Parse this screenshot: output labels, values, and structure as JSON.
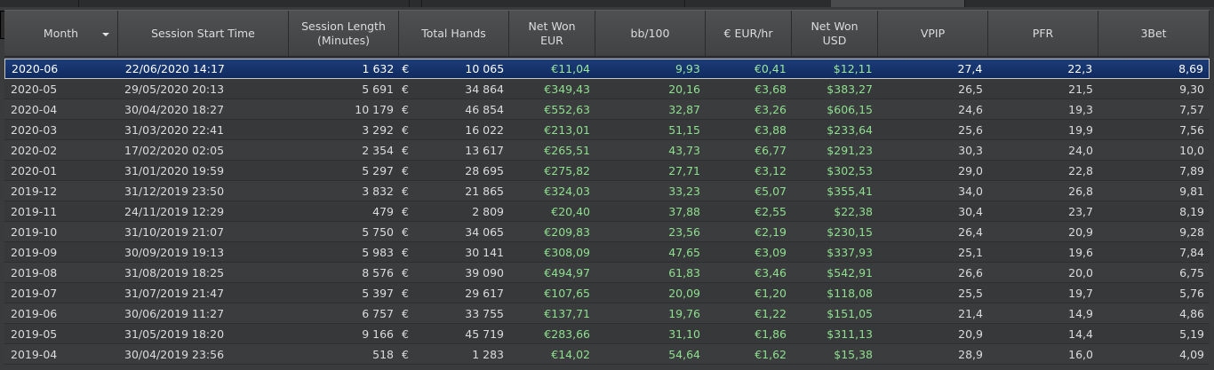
{
  "columns": [
    {
      "key": "month",
      "label": "Month",
      "sortable": true
    },
    {
      "key": "start",
      "label": "Session Start Time"
    },
    {
      "key": "length",
      "label": "Session Length (Minutes)"
    },
    {
      "key": "hands",
      "label": "Total Hands"
    },
    {
      "key": "net_eur",
      "label": "Net Won EUR"
    },
    {
      "key": "bb100",
      "label": "bb/100"
    },
    {
      "key": "eurhr",
      "label": "€ EUR/hr"
    },
    {
      "key": "net_usd",
      "label": "Net Won USD"
    },
    {
      "key": "vpip",
      "label": "VPIP"
    },
    {
      "key": "pfr",
      "label": "PFR"
    },
    {
      "key": "threebet",
      "label": "3Bet"
    }
  ],
  "currency_symbol": "€",
  "selected_row": 0,
  "colors": {
    "positive": "#8ee08e",
    "selection": "#1d3d7a",
    "text": "#dcdcdc"
  },
  "rows": [
    {
      "month": "2020-06",
      "start": "22/06/2020 14:17",
      "length": "1 632",
      "hands": "10 065",
      "net_eur": "€11,04",
      "bb100": "9,93",
      "eurhr": "€0,41",
      "net_usd": "$12,11",
      "vpip": "27,4",
      "pfr": "22,3",
      "threebet": "8,69"
    },
    {
      "month": "2020-05",
      "start": "29/05/2020 20:13",
      "length": "5 691",
      "hands": "34 864",
      "net_eur": "€349,43",
      "bb100": "20,16",
      "eurhr": "€3,68",
      "net_usd": "$383,27",
      "vpip": "26,5",
      "pfr": "21,5",
      "threebet": "9,30"
    },
    {
      "month": "2020-04",
      "start": "30/04/2020 18:27",
      "length": "10 179",
      "hands": "46 854",
      "net_eur": "€552,63",
      "bb100": "32,87",
      "eurhr": "€3,26",
      "net_usd": "$606,15",
      "vpip": "24,6",
      "pfr": "19,3",
      "threebet": "7,57"
    },
    {
      "month": "2020-03",
      "start": "31/03/2020 22:41",
      "length": "3 292",
      "hands": "16 022",
      "net_eur": "€213,01",
      "bb100": "51,15",
      "eurhr": "€3,88",
      "net_usd": "$233,64",
      "vpip": "25,6",
      "pfr": "19,9",
      "threebet": "7,56"
    },
    {
      "month": "2020-02",
      "start": "17/02/2020 02:05",
      "length": "2 354",
      "hands": "13 617",
      "net_eur": "€265,51",
      "bb100": "43,73",
      "eurhr": "€6,77",
      "net_usd": "$291,23",
      "vpip": "30,3",
      "pfr": "24,0",
      "threebet": "10,0"
    },
    {
      "month": "2020-01",
      "start": "31/01/2020 19:59",
      "length": "5 297",
      "hands": "28 695",
      "net_eur": "€275,82",
      "bb100": "27,71",
      "eurhr": "€3,12",
      "net_usd": "$302,53",
      "vpip": "29,0",
      "pfr": "22,8",
      "threebet": "7,89"
    },
    {
      "month": "2019-12",
      "start": "31/12/2019 23:50",
      "length": "3 832",
      "hands": "21 865",
      "net_eur": "€324,03",
      "bb100": "33,23",
      "eurhr": "€5,07",
      "net_usd": "$355,41",
      "vpip": "34,0",
      "pfr": "26,8",
      "threebet": "9,81"
    },
    {
      "month": "2019-11",
      "start": "24/11/2019 12:29",
      "length": "479",
      "hands": "2 809",
      "net_eur": "€20,40",
      "bb100": "37,88",
      "eurhr": "€2,55",
      "net_usd": "$22,38",
      "vpip": "30,4",
      "pfr": "23,7",
      "threebet": "8,19"
    },
    {
      "month": "2019-10",
      "start": "31/10/2019 21:07",
      "length": "5 750",
      "hands": "34 065",
      "net_eur": "€209,83",
      "bb100": "23,56",
      "eurhr": "€2,19",
      "net_usd": "$230,15",
      "vpip": "26,4",
      "pfr": "20,9",
      "threebet": "9,28"
    },
    {
      "month": "2019-09",
      "start": "30/09/2019 19:13",
      "length": "5 983",
      "hands": "30 141",
      "net_eur": "€308,09",
      "bb100": "47,65",
      "eurhr": "€3,09",
      "net_usd": "$337,93",
      "vpip": "25,1",
      "pfr": "19,6",
      "threebet": "7,84"
    },
    {
      "month": "2019-08",
      "start": "31/08/2019 18:25",
      "length": "8 576",
      "hands": "39 090",
      "net_eur": "€494,97",
      "bb100": "61,83",
      "eurhr": "€3,46",
      "net_usd": "$542,91",
      "vpip": "26,6",
      "pfr": "20,0",
      "threebet": "6,75"
    },
    {
      "month": "2019-07",
      "start": "31/07/2019 21:47",
      "length": "5 397",
      "hands": "29 617",
      "net_eur": "€107,65",
      "bb100": "20,09",
      "eurhr": "€1,20",
      "net_usd": "$118,08",
      "vpip": "25,5",
      "pfr": "19,7",
      "threebet": "5,76"
    },
    {
      "month": "2019-06",
      "start": "30/06/2019 11:27",
      "length": "6 757",
      "hands": "33 755",
      "net_eur": "€137,71",
      "bb100": "19,76",
      "eurhr": "€1,22",
      "net_usd": "$151,05",
      "vpip": "21,4",
      "pfr": "14,9",
      "threebet": "4,86"
    },
    {
      "month": "2019-05",
      "start": "31/05/2019 18:20",
      "length": "9 166",
      "hands": "45 719",
      "net_eur": "€283,66",
      "bb100": "31,10",
      "eurhr": "€1,86",
      "net_usd": "$311,13",
      "vpip": "20,9",
      "pfr": "14,4",
      "threebet": "5,19"
    },
    {
      "month": "2019-04",
      "start": "30/04/2019 23:56",
      "length": "518",
      "hands": "1 283",
      "net_eur": "€14,02",
      "bb100": "54,64",
      "eurhr": "€1,62",
      "net_usd": "$15,38",
      "vpip": "28,9",
      "pfr": "16,0",
      "threebet": "4,09"
    }
  ]
}
